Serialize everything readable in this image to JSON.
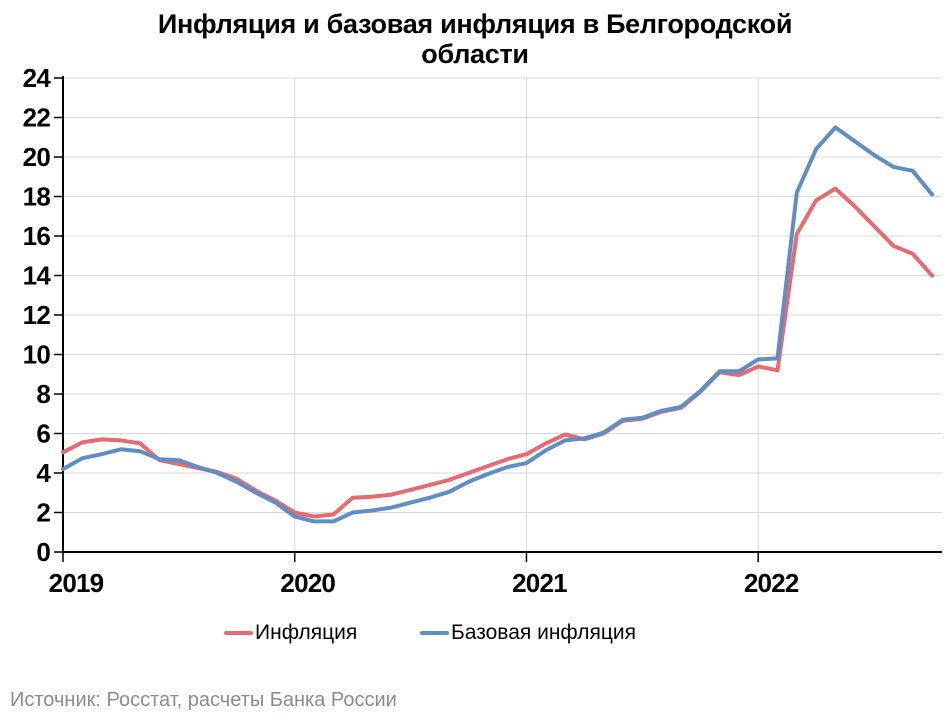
{
  "title": {
    "line1": "Инфляция и базовая инфляция в Белгородской",
    "line2": "области"
  },
  "legend": [
    {
      "label": "Инфляция",
      "color": "#E66A6E"
    },
    {
      "label": "Базовая инфляция",
      "color": "#5F8EC4"
    }
  ],
  "source": "Источник: Росстат, расчеты Банка России",
  "chart_data": {
    "type": "line",
    "title": "Инфляция и базовая инфляция в Белгородской области",
    "ylabel": "",
    "xlabel": "",
    "ylim": [
      0,
      24
    ],
    "y_tick_step": 2,
    "grid": true,
    "legend_position": "bottom",
    "x_tick_labels": [
      "2019",
      "2020",
      "2021",
      "2022"
    ],
    "x_tick_month_index": [
      0,
      12,
      24,
      36
    ],
    "x": [
      "2019-01",
      "2019-02",
      "2019-03",
      "2019-04",
      "2019-05",
      "2019-06",
      "2019-07",
      "2019-08",
      "2019-09",
      "2019-10",
      "2019-11",
      "2019-12",
      "2020-01",
      "2020-02",
      "2020-03",
      "2020-04",
      "2020-05",
      "2020-06",
      "2020-07",
      "2020-08",
      "2020-09",
      "2020-10",
      "2020-11",
      "2020-12",
      "2021-01",
      "2021-02",
      "2021-03",
      "2021-04",
      "2021-05",
      "2021-06",
      "2021-07",
      "2021-08",
      "2021-09",
      "2021-10",
      "2021-11",
      "2021-12",
      "2022-01",
      "2022-02",
      "2022-03",
      "2022-04",
      "2022-05",
      "2022-06",
      "2022-07",
      "2022-08",
      "2022-09",
      "2022-10"
    ],
    "series": [
      {
        "name": "Инфляция",
        "color": "#E66A6E",
        "values": [
          5.05,
          5.55,
          5.7,
          5.65,
          5.5,
          4.65,
          4.45,
          4.25,
          4.05,
          3.7,
          3.1,
          2.6,
          2.0,
          1.8,
          1.9,
          2.75,
          2.8,
          2.9,
          3.15,
          3.4,
          3.65,
          4.0,
          4.35,
          4.7,
          4.95,
          5.5,
          5.95,
          5.7,
          6.0,
          6.65,
          6.75,
          7.1,
          7.3,
          8.1,
          9.1,
          8.95,
          9.4,
          9.2,
          16.1,
          17.8,
          18.4,
          17.5,
          16.5,
          15.5,
          15.1,
          14.0
        ]
      },
      {
        "name": "Базовая инфляция",
        "color": "#5F8EC4",
        "values": [
          4.2,
          4.75,
          4.95,
          5.2,
          5.1,
          4.7,
          4.65,
          4.3,
          4.0,
          3.55,
          3.0,
          2.5,
          1.8,
          1.55,
          1.55,
          2.0,
          2.1,
          2.25,
          2.5,
          2.75,
          3.05,
          3.55,
          3.95,
          4.3,
          4.5,
          5.15,
          5.65,
          5.75,
          6.05,
          6.7,
          6.8,
          7.15,
          7.35,
          8.15,
          9.15,
          9.15,
          9.75,
          9.8,
          18.2,
          20.4,
          21.5,
          20.8,
          20.1,
          19.5,
          19.3,
          18.1
        ]
      }
    ]
  }
}
